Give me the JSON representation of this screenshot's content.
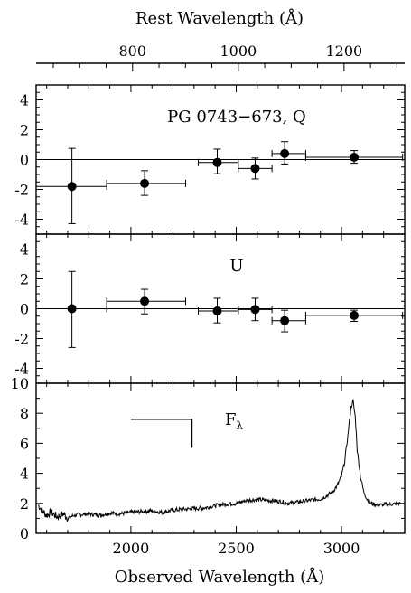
{
  "chart_data": [
    {
      "type": "scatter",
      "panel": "Q",
      "label": "PG 0743−673, Q",
      "xlim": [
        1550,
        3300
      ],
      "ylim": [
        -5,
        5
      ],
      "yticks": [
        -4,
        -2,
        0,
        2,
        4
      ],
      "top_axis": {
        "label": "Rest Wavelength (Å)",
        "ticks": [
          800,
          1000,
          1200
        ],
        "z": 1.51
      },
      "points": [
        {
          "x": 1720,
          "y": -1.8,
          "xlo": 1550,
          "xhi": 1885,
          "ylo": -4.3,
          "yhi": 0.75
        },
        {
          "x": 2065,
          "y": -1.6,
          "xlo": 1885,
          "xhi": 2260,
          "ylo": -2.4,
          "yhi": -0.75
        },
        {
          "x": 2410,
          "y": -0.2,
          "xlo": 2320,
          "xhi": 2510,
          "ylo": -0.95,
          "yhi": 0.7
        },
        {
          "x": 2590,
          "y": -0.6,
          "xlo": 2510,
          "xhi": 2670,
          "ylo": -1.3,
          "yhi": 0.1
        },
        {
          "x": 2730,
          "y": 0.4,
          "xlo": 2670,
          "xhi": 2830,
          "ylo": -0.3,
          "yhi": 1.2
        },
        {
          "x": 3060,
          "y": 0.15,
          "xlo": 2830,
          "xhi": 3290,
          "ylo": -0.25,
          "yhi": 0.6
        }
      ]
    },
    {
      "type": "scatter",
      "panel": "U",
      "label": "U",
      "xlim": [
        1550,
        3300
      ],
      "ylim": [
        -5,
        5
      ],
      "yticks": [
        -4,
        -2,
        0,
        2,
        4
      ],
      "points": [
        {
          "x": 1720,
          "y": 0.0,
          "xlo": 1550,
          "xhi": 1885,
          "ylo": -2.6,
          "yhi": 2.5
        },
        {
          "x": 2065,
          "y": 0.5,
          "xlo": 1885,
          "xhi": 2260,
          "ylo": -0.35,
          "yhi": 1.3
        },
        {
          "x": 2410,
          "y": -0.15,
          "xlo": 2320,
          "xhi": 2510,
          "ylo": -0.95,
          "yhi": 0.7
        },
        {
          "x": 2590,
          "y": -0.05,
          "xlo": 2510,
          "xhi": 2670,
          "ylo": -0.8,
          "yhi": 0.7
        },
        {
          "x": 2730,
          "y": -0.8,
          "xlo": 2670,
          "xhi": 2830,
          "ylo": -1.55,
          "yhi": -0.1
        },
        {
          "x": 3060,
          "y": -0.45,
          "xlo": 2830,
          "xhi": 3290,
          "ylo": -0.85,
          "yhi": -0.1
        }
      ]
    },
    {
      "type": "line",
      "panel": "F",
      "label": "F",
      "label_sub": "λ",
      "xlim": [
        1550,
        3300
      ],
      "ylim": [
        0,
        10
      ],
      "yticks": [
        0,
        2,
        4,
        6,
        8,
        10
      ],
      "xticks": [
        2000,
        2500,
        3000
      ],
      "xlabel": "Observed Wavelength (Å)",
      "bracket": {
        "x1": 2000,
        "x2": 2290,
        "y": 7.6,
        "y_drop": 5.7
      },
      "spectrum": [
        [
          1560,
          1.9
        ],
        [
          1580,
          1.5
        ],
        [
          1600,
          1.2
        ],
        [
          1620,
          1.4
        ],
        [
          1650,
          1.1
        ],
        [
          1680,
          1.3
        ],
        [
          1700,
          1.0
        ],
        [
          1730,
          1.2
        ],
        [
          1760,
          1.25
        ],
        [
          1800,
          1.3
        ],
        [
          1850,
          1.2
        ],
        [
          1900,
          1.35
        ],
        [
          1950,
          1.3
        ],
        [
          2000,
          1.4
        ],
        [
          2050,
          1.45
        ],
        [
          2100,
          1.5
        ],
        [
          2150,
          1.4
        ],
        [
          2200,
          1.55
        ],
        [
          2250,
          1.6
        ],
        [
          2300,
          1.65
        ],
        [
          2350,
          1.7
        ],
        [
          2400,
          1.85
        ],
        [
          2450,
          1.95
        ],
        [
          2500,
          2.0
        ],
        [
          2550,
          2.2
        ],
        [
          2600,
          2.25
        ],
        [
          2650,
          2.2
        ],
        [
          2700,
          2.15
        ],
        [
          2750,
          2.0
        ],
        [
          2800,
          2.1
        ],
        [
          2850,
          2.2
        ],
        [
          2900,
          2.3
        ],
        [
          2930,
          2.5
        ],
        [
          2960,
          2.8
        ],
        [
          2980,
          3.2
        ],
        [
          3000,
          3.8
        ],
        [
          3015,
          4.8
        ],
        [
          3030,
          6.5
        ],
        [
          3045,
          8.4
        ],
        [
          3055,
          8.8
        ],
        [
          3065,
          7.8
        ],
        [
          3075,
          5.5
        ],
        [
          3090,
          3.8
        ],
        [
          3105,
          2.8
        ],
        [
          3120,
          2.3
        ],
        [
          3140,
          2.0
        ],
        [
          3170,
          1.9
        ],
        [
          3200,
          1.9
        ],
        [
          3240,
          1.95
        ],
        [
          3280,
          2.0
        ]
      ]
    }
  ]
}
